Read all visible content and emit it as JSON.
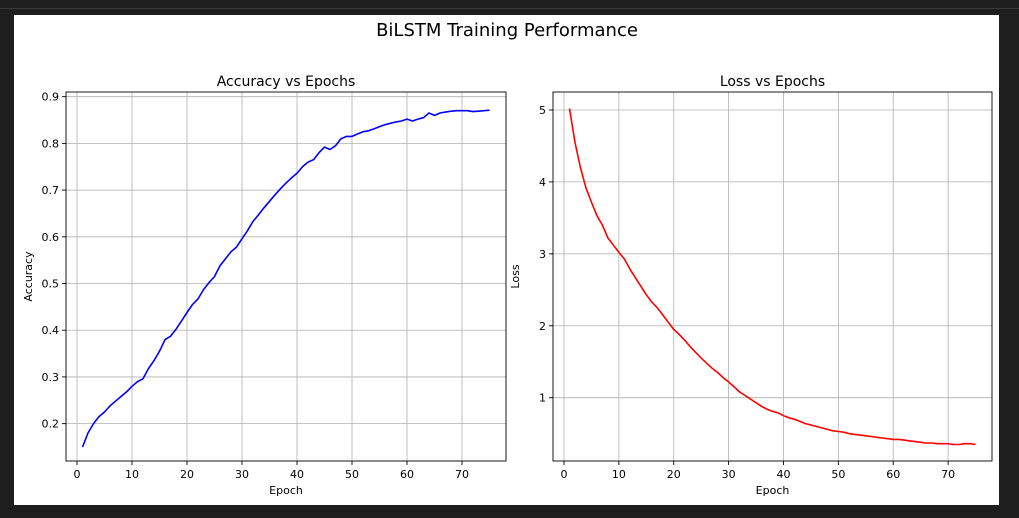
{
  "figure": {
    "title": "BiLSTM Training Performance"
  },
  "chart_data": [
    {
      "type": "line",
      "title": "Accuracy vs Epochs",
      "xlabel": "Epoch",
      "ylabel": "Accuracy",
      "xlim": [
        -2,
        78
      ],
      "ylim": [
        0.12,
        0.91
      ],
      "xticks": [
        0,
        10,
        20,
        30,
        40,
        50,
        60,
        70
      ],
      "yticks": [
        0.2,
        0.3,
        0.4,
        0.5,
        0.6,
        0.7,
        0.8,
        0.9
      ],
      "grid": true,
      "series": [
        {
          "color": "#0000ff",
          "x": [
            1,
            2,
            3,
            4,
            5,
            6,
            7,
            8,
            9,
            10,
            11,
            12,
            13,
            14,
            15,
            16,
            17,
            18,
            19,
            20,
            21,
            22,
            23,
            24,
            25,
            26,
            27,
            28,
            29,
            30,
            31,
            32,
            33,
            34,
            35,
            36,
            37,
            38,
            39,
            40,
            41,
            42,
            43,
            44,
            45,
            46,
            47,
            48,
            49,
            50,
            51,
            52,
            53,
            54,
            55,
            56,
            57,
            58,
            59,
            60,
            61,
            62,
            63,
            64,
            65,
            66,
            67,
            68,
            69,
            70,
            71,
            72,
            73,
            74,
            75
          ],
          "y": [
            0.15,
            0.18,
            0.2,
            0.215,
            0.225,
            0.238,
            0.248,
            0.258,
            0.268,
            0.28,
            0.29,
            0.296,
            0.318,
            0.335,
            0.355,
            0.38,
            0.387,
            0.402,
            0.42,
            0.438,
            0.455,
            0.467,
            0.487,
            0.502,
            0.515,
            0.538,
            0.553,
            0.568,
            0.578,
            0.596,
            0.613,
            0.633,
            0.647,
            0.662,
            0.676,
            0.69,
            0.703,
            0.715,
            0.726,
            0.736,
            0.75,
            0.76,
            0.765,
            0.78,
            0.792,
            0.787,
            0.795,
            0.81,
            0.815,
            0.815,
            0.82,
            0.825,
            0.827,
            0.831,
            0.836,
            0.84,
            0.843,
            0.846,
            0.848,
            0.852,
            0.848,
            0.852,
            0.855,
            0.865,
            0.86,
            0.865,
            0.867,
            0.869,
            0.87,
            0.87,
            0.87,
            0.868,
            0.869,
            0.87,
            0.871
          ]
        }
      ]
    },
    {
      "type": "line",
      "title": "Loss vs Epochs",
      "xlabel": "Epoch",
      "ylabel": "Loss",
      "xlim": [
        -2,
        78
      ],
      "ylim": [
        0.12,
        5.25
      ],
      "xticks": [
        0,
        10,
        20,
        30,
        40,
        50,
        60,
        70
      ],
      "yticks": [
        1,
        2,
        3,
        4,
        5
      ],
      "grid": true,
      "series": [
        {
          "color": "#ff0000",
          "x": [
            1,
            2,
            3,
            4,
            5,
            6,
            7,
            8,
            9,
            10,
            11,
            12,
            13,
            14,
            15,
            16,
            17,
            18,
            19,
            20,
            21,
            22,
            23,
            24,
            25,
            26,
            27,
            28,
            29,
            30,
            31,
            32,
            33,
            34,
            35,
            36,
            37,
            38,
            39,
            40,
            41,
            42,
            43,
            44,
            45,
            46,
            47,
            48,
            49,
            50,
            51,
            52,
            53,
            54,
            55,
            56,
            57,
            58,
            59,
            60,
            61,
            62,
            63,
            64,
            65,
            66,
            67,
            68,
            69,
            70,
            71,
            72,
            73,
            74,
            75
          ],
          "y": [
            5.02,
            4.55,
            4.2,
            3.92,
            3.72,
            3.53,
            3.4,
            3.22,
            3.12,
            3.02,
            2.93,
            2.79,
            2.67,
            2.55,
            2.43,
            2.33,
            2.25,
            2.15,
            2.05,
            1.95,
            1.88,
            1.8,
            1.71,
            1.63,
            1.55,
            1.48,
            1.41,
            1.35,
            1.28,
            1.22,
            1.15,
            1.08,
            1.03,
            0.98,
            0.93,
            0.88,
            0.84,
            0.81,
            0.79,
            0.75,
            0.72,
            0.7,
            0.67,
            0.64,
            0.62,
            0.6,
            0.58,
            0.56,
            0.54,
            0.53,
            0.52,
            0.5,
            0.49,
            0.48,
            0.47,
            0.46,
            0.45,
            0.44,
            0.43,
            0.42,
            0.42,
            0.41,
            0.4,
            0.39,
            0.38,
            0.37,
            0.37,
            0.36,
            0.36,
            0.36,
            0.35,
            0.35,
            0.36,
            0.36,
            0.35
          ]
        }
      ]
    }
  ]
}
